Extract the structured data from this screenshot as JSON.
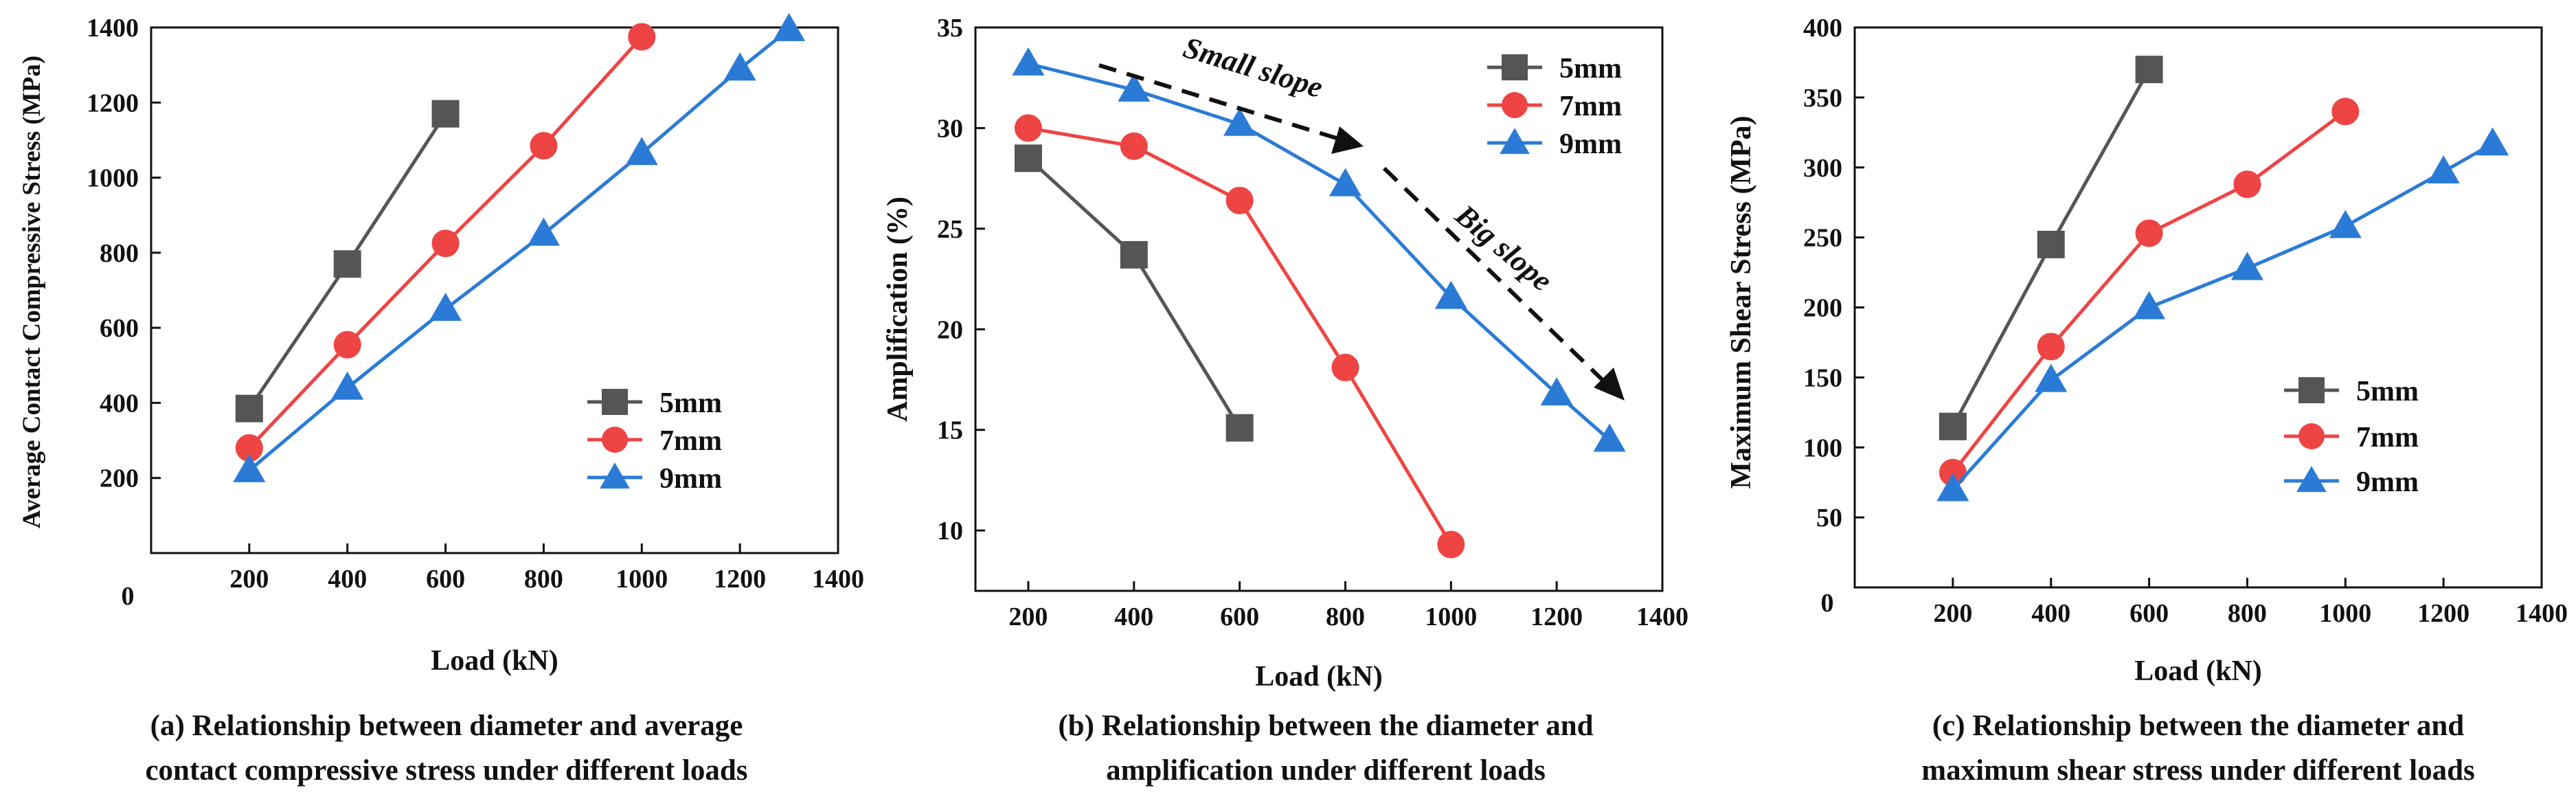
{
  "colors": {
    "5mm": "#555555",
    "7mm": "#ee4444",
    "9mm": "#2b7bd6",
    "axis": "#111111"
  },
  "chart_data": [
    {
      "type": "line",
      "title": "",
      "xlabel": "Load (kN)",
      "ylabel": "Average Contact Compressive Stress (MPa)",
      "xlim": [
        0,
        1400
      ],
      "ylim": [
        0,
        1400
      ],
      "x_ticks": [
        200,
        400,
        600,
        800,
        1000,
        1200,
        1400
      ],
      "y_ticks": [
        200,
        400,
        600,
        800,
        1000,
        1200,
        1400
      ],
      "origin_label": "0",
      "legend_position": "center-right",
      "caption": [
        "(a)  Relationship between diameter and average",
        "contact compressive stress  under different loads"
      ],
      "series": [
        {
          "name": "5mm",
          "marker": "square",
          "x": [
            200,
            400,
            600
          ],
          "y": [
            385,
            770,
            1170
          ]
        },
        {
          "name": "7mm",
          "marker": "circle",
          "x": [
            200,
            400,
            600,
            800,
            1000
          ],
          "y": [
            280,
            555,
            825,
            1085,
            1375
          ]
        },
        {
          "name": "9mm",
          "marker": "triangle",
          "x": [
            200,
            400,
            600,
            800,
            1000,
            1200,
            1300
          ],
          "y": [
            220,
            440,
            650,
            850,
            1065,
            1290,
            1395
          ]
        }
      ]
    },
    {
      "type": "line",
      "title": "",
      "xlabel": "Load (kN)",
      "ylabel": "Amplification (%)",
      "xlim": [
        100,
        1400
      ],
      "ylim": [
        7,
        35
      ],
      "x_ticks": [
        200,
        400,
        600,
        800,
        1000,
        1200,
        1400
      ],
      "y_ticks": [
        10,
        15,
        20,
        25,
        30,
        35
      ],
      "legend_position": "top-right",
      "annotations": [
        {
          "text": "Small slope",
          "x": 560,
          "y": 32.3
        },
        {
          "text": "Big slope",
          "x": 1115,
          "y": 23.3
        }
      ],
      "caption": [
        "(b)  Relationship between the  diameter and",
        "amplification under different loads"
      ],
      "series": [
        {
          "name": "5mm",
          "marker": "square",
          "x": [
            200,
            400,
            600
          ],
          "y": [
            28.5,
            23.7,
            15.1
          ]
        },
        {
          "name": "7mm",
          "marker": "circle",
          "x": [
            200,
            400,
            600,
            800,
            1000
          ],
          "y": [
            30,
            29.1,
            26.4,
            18.1,
            9.3
          ]
        },
        {
          "name": "9mm",
          "marker": "triangle",
          "x": [
            200,
            400,
            600,
            800,
            1000,
            1200,
            1300
          ],
          "y": [
            33.2,
            31.9,
            30.2,
            27.2,
            21.6,
            16.8,
            14.5
          ]
        }
      ]
    },
    {
      "type": "line",
      "title": "",
      "xlabel": "Load (kN)",
      "ylabel": "Maximum Shear Stress (MPa)",
      "xlim": [
        0,
        1400
      ],
      "ylim": [
        0,
        400
      ],
      "x_ticks": [
        200,
        400,
        600,
        800,
        1000,
        1200,
        1400
      ],
      "y_ticks": [
        50,
        100,
        150,
        200,
        250,
        300,
        350,
        400
      ],
      "origin_label": "0",
      "legend_position": "center-right",
      "caption": [
        "(c)  Relationship between the  diameter and",
        "maximum shear stress under different loads"
      ],
      "series": [
        {
          "name": "5mm",
          "marker": "square",
          "x": [
            200,
            400,
            600
          ],
          "y": [
            115,
            245,
            370
          ]
        },
        {
          "name": "7mm",
          "marker": "circle",
          "x": [
            200,
            400,
            600,
            800,
            1000
          ],
          "y": [
            82,
            172,
            253,
            288,
            340
          ]
        },
        {
          "name": "9mm",
          "marker": "triangle",
          "x": [
            200,
            400,
            600,
            800,
            1000,
            1200,
            1300
          ],
          "y": [
            70,
            148,
            200,
            228,
            258,
            297,
            317
          ]
        }
      ]
    }
  ]
}
